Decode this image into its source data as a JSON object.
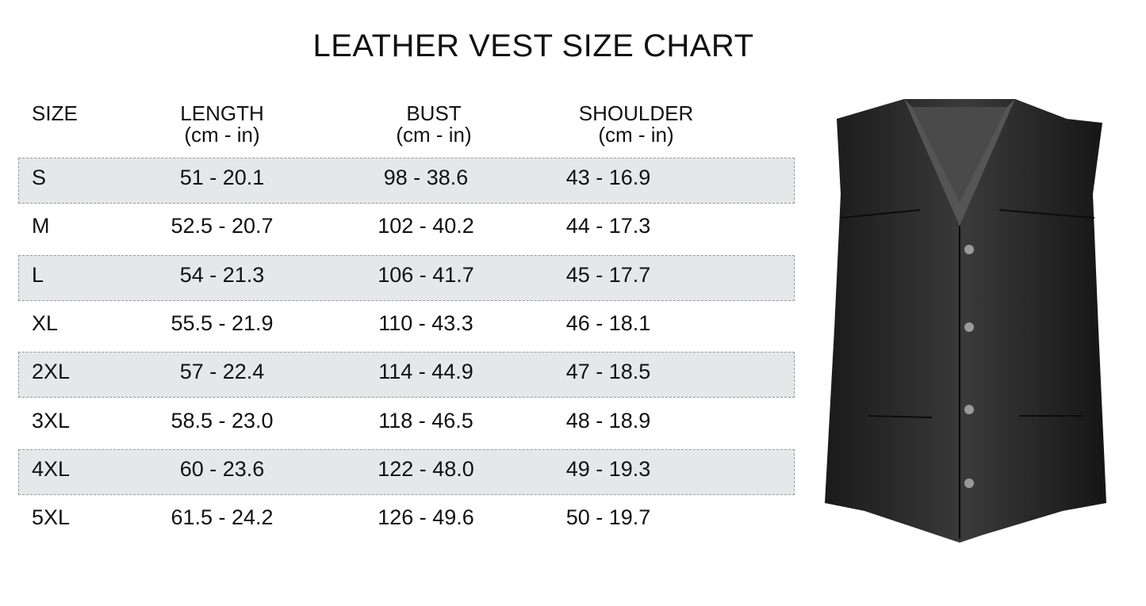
{
  "title": "LEATHER VEST SIZE CHART",
  "headers": [
    {
      "label": "SIZE",
      "unit": ""
    },
    {
      "label": "LENGTH",
      "unit": "(cm - in)"
    },
    {
      "label": "BUST",
      "unit": "(cm - in)"
    },
    {
      "label": "SHOULDER",
      "unit": "(cm - in)"
    }
  ],
  "rows": [
    [
      "S",
      "51 - 20.1",
      "98 - 38.6",
      "43 - 16.9"
    ],
    [
      "M",
      "52.5 - 20.7",
      "102 - 40.2",
      "44 - 17.3"
    ],
    [
      "L",
      "54 - 21.3",
      "106 - 41.7",
      "45 - 17.7"
    ],
    [
      "XL",
      "55.5 - 21.9",
      "110 - 43.3",
      "46 - 18.1"
    ],
    [
      "2XL",
      "57 - 22.4",
      "114 - 44.9",
      "47 - 18.5"
    ],
    [
      "3XL",
      "58.5 - 23.0",
      "118 - 46.5",
      "48 - 18.9"
    ],
    [
      "4XL",
      "60 - 23.6",
      "122 - 48.0",
      "49 - 19.3"
    ],
    [
      "5XL",
      "61.5 - 24.2",
      "126 - 49.6",
      "50 - 19.7"
    ]
  ],
  "colors": {
    "band": "#e6e7e9",
    "border": "#9a9a9a"
  }
}
